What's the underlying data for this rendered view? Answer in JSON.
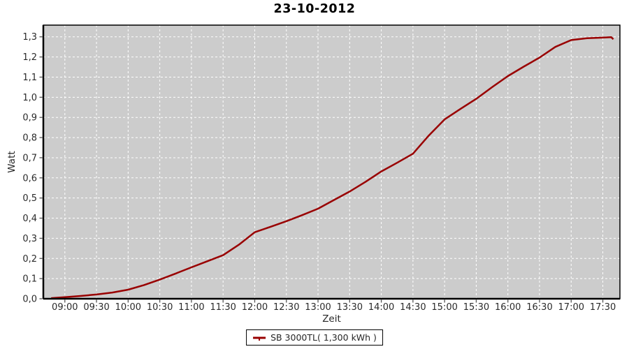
{
  "chart_data": {
    "type": "line",
    "title": "23-10-2012",
    "xlabel": "Zeit",
    "ylabel": "Watt",
    "plot_background": "#CCCCCC",
    "grid_color": "#FFFFFF",
    "grid_style": "dashed",
    "axis_color": "#000000",
    "tick_color": "#555555",
    "tick_label_color": "#2b2b2b",
    "xlim_hours": [
      8.66,
      17.77
    ],
    "ylim": [
      0,
      1.358
    ],
    "x_ticks": [
      {
        "h": 9.0,
        "label": "09:00"
      },
      {
        "h": 9.5,
        "label": "09:30"
      },
      {
        "h": 10.0,
        "label": "10:00"
      },
      {
        "h": 10.5,
        "label": "10:30"
      },
      {
        "h": 11.0,
        "label": "11:00"
      },
      {
        "h": 11.5,
        "label": "11:30"
      },
      {
        "h": 12.0,
        "label": "12:00"
      },
      {
        "h": 12.5,
        "label": "12:30"
      },
      {
        "h": 13.0,
        "label": "13:00"
      },
      {
        "h": 13.5,
        "label": "13:30"
      },
      {
        "h": 14.0,
        "label": "14:00"
      },
      {
        "h": 14.5,
        "label": "14:30"
      },
      {
        "h": 15.0,
        "label": "15:00"
      },
      {
        "h": 15.5,
        "label": "15:30"
      },
      {
        "h": 16.0,
        "label": "16:00"
      },
      {
        "h": 16.5,
        "label": "16:30"
      },
      {
        "h": 17.0,
        "label": "17:00"
      },
      {
        "h": 17.5,
        "label": "17:30"
      }
    ],
    "y_ticks": [
      {
        "v": 0.0,
        "label": "0,0"
      },
      {
        "v": 0.1,
        "label": "0,1"
      },
      {
        "v": 0.2,
        "label": "0,2"
      },
      {
        "v": 0.3,
        "label": "0,3"
      },
      {
        "v": 0.4,
        "label": "0,4"
      },
      {
        "v": 0.5,
        "label": "0,5"
      },
      {
        "v": 0.6,
        "label": "0,6"
      },
      {
        "v": 0.7,
        "label": "0,7"
      },
      {
        "v": 0.8,
        "label": "0,8"
      },
      {
        "v": 0.9,
        "label": "0,9"
      },
      {
        "v": 1.0,
        "label": "1,0"
      },
      {
        "v": 1.1,
        "label": "1,1"
      },
      {
        "v": 1.2,
        "label": "1,2"
      },
      {
        "v": 1.3,
        "label": "1,3"
      }
    ],
    "legend": {
      "position": "bottom-center",
      "entries": [
        {
          "label": "SB 3000TL( 1,300 kWh )",
          "color": "#990000"
        }
      ]
    },
    "series": [
      {
        "name": "SB 3000TL( 1,300 kWh )",
        "color": "#990000",
        "stroke_width": 2.5,
        "points": [
          [
            "08:47",
            0.003
          ],
          [
            "09:00",
            0.008
          ],
          [
            "09:15",
            0.014
          ],
          [
            "09:30",
            0.021
          ],
          [
            "09:45",
            0.031
          ],
          [
            "10:00",
            0.045
          ],
          [
            "10:15",
            0.068
          ],
          [
            "10:30",
            0.095
          ],
          [
            "10:45",
            0.125
          ],
          [
            "11:00",
            0.156
          ],
          [
            "11:15",
            0.186
          ],
          [
            "11:30",
            0.216
          ],
          [
            "11:45",
            0.268
          ],
          [
            "12:00",
            0.33
          ],
          [
            "12:15",
            0.357
          ],
          [
            "12:30",
            0.385
          ],
          [
            "12:45",
            0.415
          ],
          [
            "13:00",
            0.447
          ],
          [
            "13:15",
            0.49
          ],
          [
            "13:30",
            0.532
          ],
          [
            "13:45",
            0.58
          ],
          [
            "14:00",
            0.632
          ],
          [
            "14:15",
            0.675
          ],
          [
            "14:30",
            0.72
          ],
          [
            "14:45",
            0.81
          ],
          [
            "15:00",
            0.89
          ],
          [
            "15:15",
            0.942
          ],
          [
            "15:30",
            0.992
          ],
          [
            "15:45",
            1.05
          ],
          [
            "16:00",
            1.105
          ],
          [
            "16:15",
            1.152
          ],
          [
            "16:30",
            1.197
          ],
          [
            "16:45",
            1.25
          ],
          [
            "17:00",
            1.284
          ],
          [
            "17:15",
            1.293
          ],
          [
            "17:30",
            1.296
          ],
          [
            "17:38",
            1.298
          ],
          [
            "17:40",
            1.288
          ]
        ]
      }
    ]
  }
}
